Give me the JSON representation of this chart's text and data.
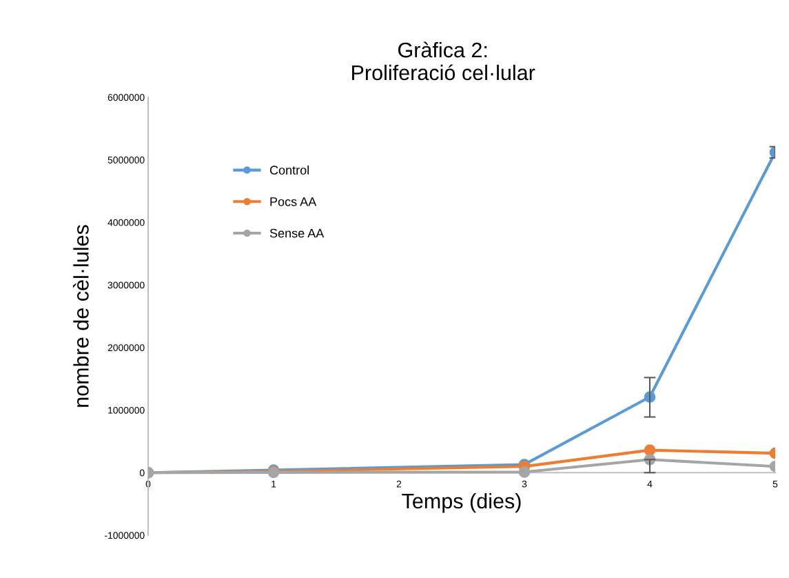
{
  "chart_data": {
    "type": "line",
    "title": "Gràfica 2:\nProliferació cel·lular",
    "xlabel": "Temps (dies)",
    "ylabel": "nombre de cèl·lules",
    "x": [
      0,
      1,
      3,
      4,
      5
    ],
    "series": [
      {
        "name": "Control",
        "color": "#5b9bd5",
        "values": [
          0,
          40000,
          130000,
          1210000,
          5120000
        ],
        "errors": [
          null,
          null,
          null,
          [
            890000,
            1520000
          ],
          [
            5030000,
            5210000
          ]
        ]
      },
      {
        "name": "Pocs AA",
        "color": "#ed7d31",
        "values": [
          0,
          20000,
          100000,
          360000,
          310000
        ]
      },
      {
        "name": "Sense AA",
        "color": "#a5a5a5",
        "values": [
          0,
          5000,
          10000,
          210000,
          100000
        ],
        "errors": [
          null,
          null,
          null,
          [
            0,
            210000
          ],
          null
        ]
      }
    ],
    "xlim": [
      0,
      5
    ],
    "xticks": [
      0,
      1,
      2,
      3,
      4,
      5
    ],
    "ylim": [
      -1000000,
      6000000
    ],
    "yticks": [
      -1000000,
      0,
      1000000,
      2000000,
      3000000,
      4000000,
      5000000,
      6000000
    ],
    "marker": "circle",
    "line_style": "solid",
    "grid": false,
    "legend": "top left"
  }
}
